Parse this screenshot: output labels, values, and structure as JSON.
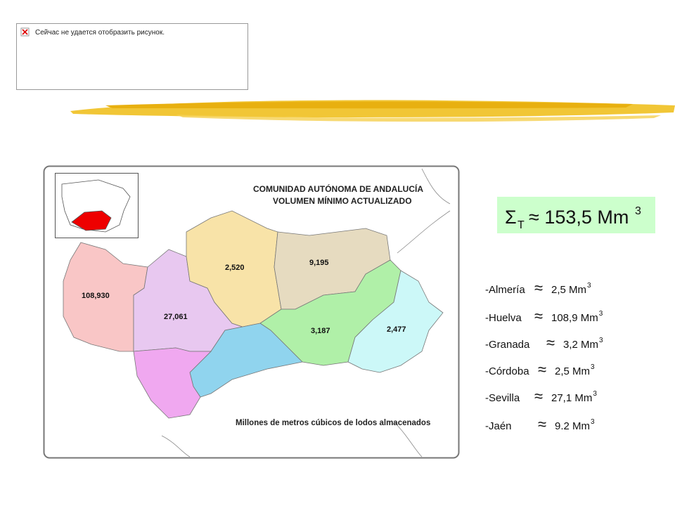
{
  "broken_image": {
    "text": "Сейчас не удается отобразить рисунок."
  },
  "map": {
    "title_lines": [
      "COMUNIDAD AUTÓNOMA DE ANDALUCÍA",
      "VOLUMEN MÍNIMO ACTUALIZADO"
    ],
    "region_labels": [
      "108,930",
      "27,061",
      "2,520",
      "9,195",
      "3,187",
      "2,477"
    ],
    "caption": "Millones de metros cúbicos de lodos almacenados"
  },
  "total": {
    "sigma": "Σ",
    "sub": "T",
    "text": "≈ 153,5 Mm",
    "exp": "3"
  },
  "list": [
    {
      "label": "-Almería",
      "approx": "≈",
      "value": "2,5 Mm",
      "exp": "3"
    },
    {
      "label": "-Huelva",
      "approx": "≈",
      "value": "108,9 Mm",
      "exp": "3"
    },
    {
      "label": "-Granada",
      "approx": "≈",
      "value": "3,2 Mm",
      "exp": "3"
    },
    {
      "label": "-Córdoba",
      "approx": "≈",
      "value": "2,5 Mm",
      "exp": "3"
    },
    {
      "label": "-Sevilla",
      "approx": "≈",
      "value": "27,1 Mm",
      "exp": "3"
    },
    {
      "label": "-Jaén",
      "approx": "≈",
      "value": "9.2 Mm",
      "exp": "3"
    }
  ]
}
